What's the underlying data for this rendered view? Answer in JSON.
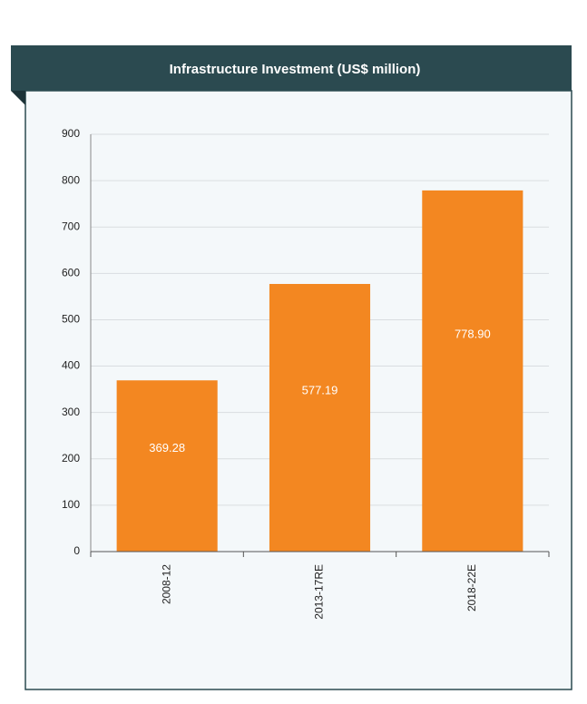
{
  "chart_data": {
    "type": "bar",
    "title": "Infrastructure Investment (US$ million)",
    "categories": [
      "2008-12",
      "2013-17RE",
      "2018-22E"
    ],
    "values": [
      369.28,
      577.19,
      778.9
    ],
    "value_labels": [
      "369.28",
      "577.19",
      "778.90"
    ],
    "color": "#f38721",
    "ylim": [
      0,
      900
    ],
    "yticks": [
      0,
      100,
      200,
      300,
      400,
      500,
      600,
      700,
      800,
      900
    ],
    "grid": true
  }
}
